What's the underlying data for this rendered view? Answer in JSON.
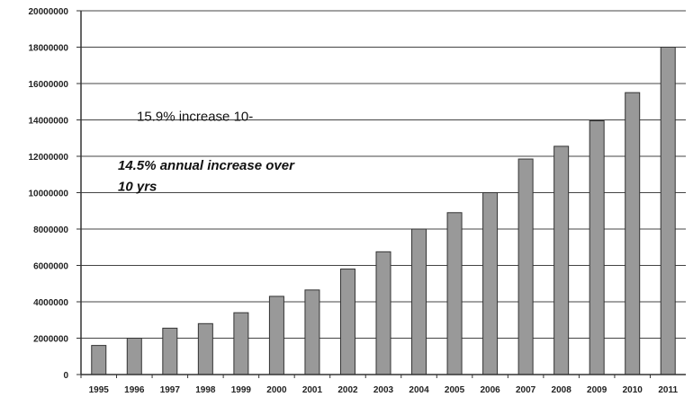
{
  "chart_data": {
    "type": "bar",
    "categories": [
      "1995",
      "1996",
      "1997",
      "1998",
      "1999",
      "2000",
      "2001",
      "2002",
      "2003",
      "2004",
      "2005",
      "2006",
      "2007",
      "2008",
      "2009",
      "2010",
      "2011"
    ],
    "values": [
      1600000,
      2000000,
      2550000,
      2800000,
      3400000,
      4300000,
      4650000,
      5800000,
      6750000,
      8000000,
      8900000,
      10000000,
      11850000,
      12550000,
      13950000,
      15500000,
      18000000
    ],
    "ylim": [
      0,
      20000000
    ],
    "y_ticks": [
      0,
      2000000,
      4000000,
      6000000,
      8000000,
      10000000,
      12000000,
      14000000,
      16000000,
      18000000,
      20000000
    ],
    "y_tick_labels": [
      "0",
      "2000000",
      "4000000",
      "6000000",
      "8000000",
      "10000000",
      "12000000",
      "14000000",
      "16000000",
      "18000000",
      "20000000"
    ],
    "grid": true,
    "legend": "none",
    "bar_color": "#999999",
    "annotations": [
      {
        "text": "15.9% increase 10-",
        "y": 14200000
      },
      {
        "text": "14.5% annual increase over",
        "y": 11500000
      },
      {
        "text": "10 yrs",
        "y": 10350000
      }
    ]
  }
}
